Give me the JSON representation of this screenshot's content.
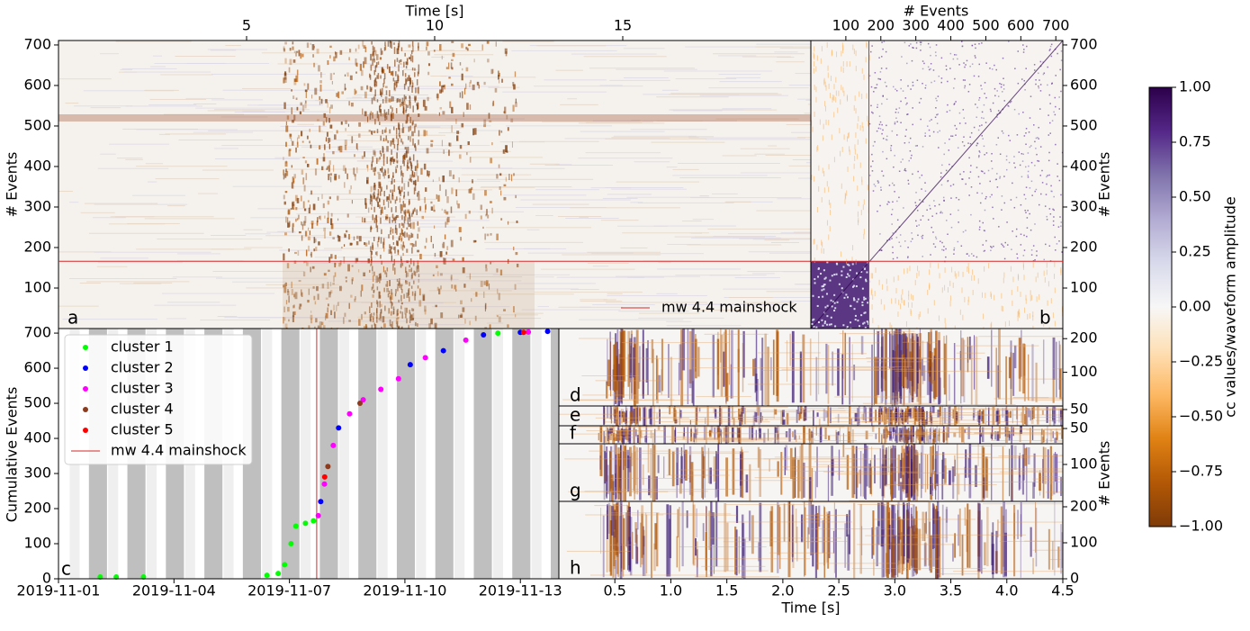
{
  "chart_data": [
    {
      "type": "heatmap",
      "xlabel": "Time [s]",
      "ylabel": "# Events",
      "xlim": [
        0,
        20
      ],
      "xticks": [
        5,
        10,
        15
      ],
      "ylim": [
        0,
        711
      ],
      "yticks": [
        100,
        200,
        300,
        400,
        500,
        600,
        700
      ],
      "mainshock_event": 166,
      "mainshock_color": "#d62728",
      "legend": "mw 4.4 mainshock",
      "panel_label": "a"
    },
    {
      "type": "matrix",
      "xlabel": "# Events",
      "ylabel": "# Events",
      "xlim": [
        0,
        720
      ],
      "xticks": [
        100,
        200,
        300,
        400,
        500,
        600,
        700
      ],
      "ylim": [
        0,
        711
      ],
      "yticks": [
        100,
        200,
        300,
        400,
        500,
        600,
        700
      ],
      "mainshock_event": 166,
      "mainshock_color": "#d62728",
      "panel_label": "b"
    },
    {
      "type": "scatter",
      "ylabel": "Cumulative Events",
      "xlim": [
        "2019-11-01",
        "2019-11-14"
      ],
      "xticks": [
        "2019-11-01",
        "2019-11-04",
        "2019-11-07",
        "2019-11-10",
        "2019-11-13"
      ],
      "ylim": [
        0,
        713
      ],
      "yticks": [
        0,
        100,
        200,
        300,
        400,
        500,
        600,
        700
      ],
      "mainshock_x": "2019-11-07T17:00",
      "mainshock_label": "mw 4.4 mainshock",
      "mainshock_color": "#d62728",
      "panel_label": "c",
      "legend": "upper left",
      "series": [
        {
          "name": "cluster 1",
          "color": "#00ff00",
          "x": [
            "2019-11-02T02:00",
            "2019-11-02T12:00",
            "2019-11-03T05:00",
            "2019-11-06T10:00",
            "2019-11-06T17:00",
            "2019-11-06T21:00",
            "2019-11-07T01:00",
            "2019-11-07T04:00",
            "2019-11-07T10:00",
            "2019-11-07T15:00",
            "2019-11-12T10:00"
          ],
          "values": [
            5,
            5,
            5,
            10,
            15,
            40,
            100,
            150,
            158,
            165,
            700
          ]
        },
        {
          "name": "cluster 2",
          "color": "#0000ff",
          "x": [
            "2019-11-07T19:30",
            "2019-11-08T06:40",
            "2019-11-10T03:20",
            "2019-11-11T00:00",
            "2019-11-12T01:00",
            "2019-11-13T00:00",
            "2019-11-13T17:00"
          ],
          "values": [
            220,
            430,
            610,
            650,
            695,
            702,
            705
          ]
        },
        {
          "name": "cluster 3",
          "color": "#ff00ff",
          "x": [
            "2019-11-07T18:00",
            "2019-11-07T21:50",
            "2019-11-08T03:20",
            "2019-11-08T13:30",
            "2019-11-08T22:00",
            "2019-11-09T09:00",
            "2019-11-09T20:00",
            "2019-11-10T12:45",
            "2019-11-11T14:00",
            "2019-11-13T05:00"
          ],
          "values": [
            180,
            270,
            380,
            470,
            510,
            540,
            570,
            630,
            680,
            703
          ]
        },
        {
          "name": "cluster 4",
          "color": "#8c3b1e",
          "x": [
            "2019-11-08T00:00",
            "2019-11-08T20:00"
          ],
          "values": [
            320,
            500
          ]
        },
        {
          "name": "cluster 5",
          "color": "#ff0000",
          "x": [
            "2019-11-07T22:00",
            "2019-11-13T02:00"
          ],
          "values": [
            290,
            702
          ]
        }
      ]
    },
    {
      "type": "waveform-stack",
      "xlabel": "Time [s]",
      "ylabel": "# Events",
      "xlim": [
        0,
        4.5
      ],
      "xticks": [
        0.5,
        {
          "value": 1,
          "label": "1.0"
        },
        1.5,
        {
          "value": 2,
          "label": "2.0"
        },
        2.5,
        {
          "value": 3,
          "label": "3.0"
        },
        3.5,
        {
          "value": 4,
          "label": "4.0"
        },
        4.5
      ],
      "panels": [
        {
          "label": "d",
          "ylim": [
            0,
            230
          ],
          "yticks": [
            100,
            200
          ]
        },
        {
          "label": "e",
          "ylim": [
            0,
            61
          ],
          "yticks": [
            50
          ]
        },
        {
          "label": "f",
          "ylim": [
            0,
            59
          ],
          "yticks": [
            50
          ]
        },
        {
          "label": "g",
          "ylim": [
            0,
            156
          ],
          "yticks": [
            100
          ]
        },
        {
          "label": "h",
          "ylim": [
            0,
            215
          ],
          "yticks": [
            0,
            100,
            200
          ]
        }
      ]
    },
    {
      "type": "colorbar",
      "label": "cc values/waveform amplitude",
      "ylim": [
        -1,
        1
      ],
      "yticks": [
        {
          "value": -1,
          "label": "−1.00"
        },
        {
          "value": -0.75,
          "label": "−0.75"
        },
        {
          "value": -0.5,
          "label": "−0.50"
        },
        {
          "value": -0.25,
          "label": "−0.25"
        },
        {
          "value": 0,
          "label": "0.00"
        },
        {
          "value": 0.25,
          "label": "0.25"
        },
        {
          "value": 0.5,
          "label": "0.50"
        },
        {
          "value": 0.75,
          "label": "0.75"
        },
        {
          "value": 1,
          "label": "1.00"
        }
      ],
      "colors": [
        "#7f3b08",
        "#b35806",
        "#e08214",
        "#fdb863",
        "#fee0b6",
        "#f7f7f7",
        "#d8daeb",
        "#b2abd2",
        "#8073ac",
        "#542788",
        "#2d004b"
      ]
    }
  ]
}
